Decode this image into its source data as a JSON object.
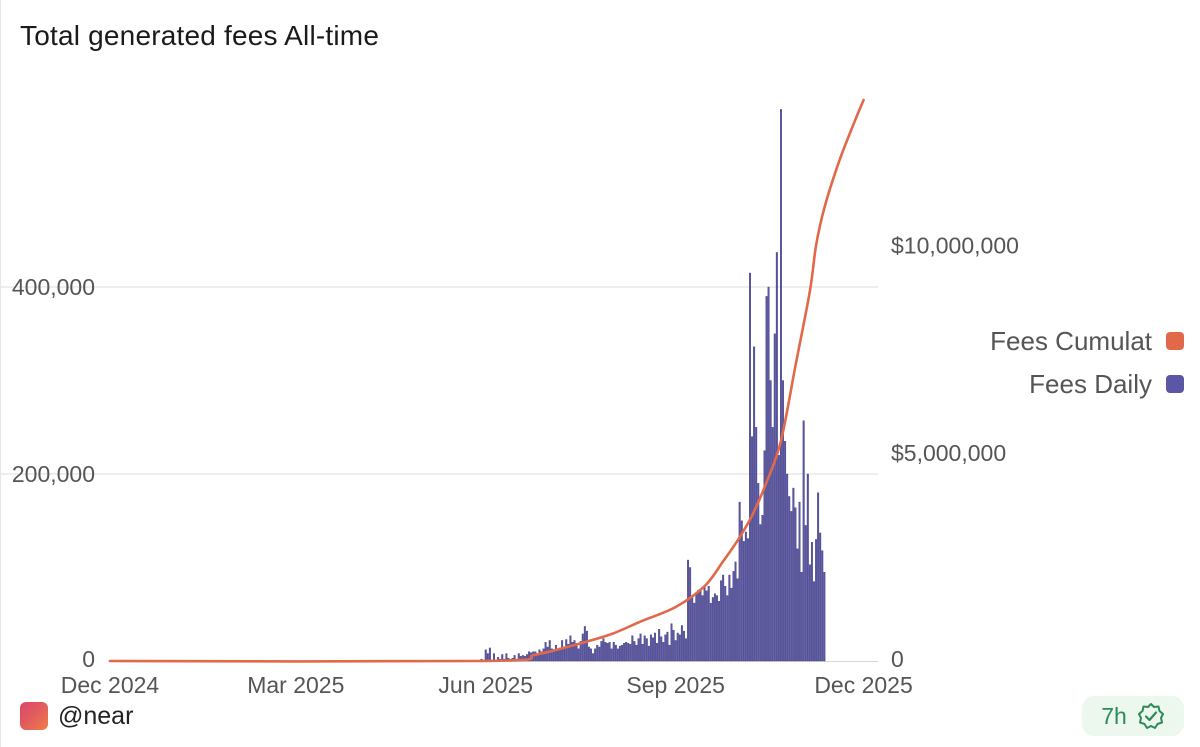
{
  "title": "Total generated fees All-time",
  "chart_data": {
    "type": "bar+line",
    "title": "Total generated fees All-time",
    "x_range": [
      "2024-12-01",
      "2025-12-08"
    ],
    "x_ticks": [
      {
        "date": "2024-12-01",
        "label": "Dec 2024"
      },
      {
        "date": "2025-03-01",
        "label": "Mar 2025"
      },
      {
        "date": "2025-06-01",
        "label": "Jun 2025"
      },
      {
        "date": "2025-09-01",
        "label": "Sep 2025"
      },
      {
        "date": "2025-12-01",
        "label": "Dec 2025"
      }
    ],
    "y_left": {
      "min": 0,
      "max": 600000,
      "ticks": [
        {
          "value": 0,
          "label": "0"
        },
        {
          "value": 200000,
          "label": "200,000"
        },
        {
          "value": 400000,
          "label": "400,000"
        }
      ]
    },
    "y_right": {
      "min": 0,
      "max": 13500000,
      "ticks": [
        {
          "value": 0,
          "label": "0"
        },
        {
          "value": 5000000,
          "label": "$5,000,000"
        },
        {
          "value": 10000000,
          "label": "$10,000,000"
        }
      ]
    },
    "legend": {
      "position": "right",
      "items": [
        {
          "name": "Fees Cumulat",
          "color": "#e1694a"
        },
        {
          "name": "Fees Daily",
          "color": "#5b57a5"
        }
      ]
    },
    "series": [
      {
        "name": "Fees Daily",
        "type": "bar",
        "axis": "left",
        "color": "#5b57a5",
        "start": "2025-05-30",
        "values": [
          2000,
          1000,
          12000,
          8000,
          14000,
          1000,
          8000,
          1000,
          4000,
          2000,
          7000,
          2000,
          8000,
          3000,
          2000,
          3000,
          6000,
          2000,
          8000,
          5000,
          6000,
          5000,
          7000,
          10000,
          9000,
          10000,
          10000,
          8000,
          12000,
          10000,
          13000,
          20000,
          15000,
          22000,
          13000,
          11000,
          17000,
          13000,
          14000,
          22000,
          14000,
          23000,
          18000,
          27000,
          20000,
          22000,
          19000,
          13000,
          21000,
          29000,
          37000,
          32000,
          15000,
          13000,
          8000,
          13000,
          17000,
          15000,
          21000,
          24000,
          20000,
          19000,
          20000,
          13000,
          20000,
          17000,
          13000,
          16000,
          17000,
          19000,
          20000,
          19000,
          18000,
          27000,
          21000,
          17000,
          24000,
          29000,
          18000,
          27000,
          24000,
          16000,
          28000,
          25000,
          30000,
          19000,
          34000,
          26000,
          20000,
          28000,
          31000,
          17000,
          40000,
          33000,
          22000,
          30000,
          28000,
          38000,
          32000,
          24000,
          108000,
          100000,
          70000,
          62000,
          72000,
          76000,
          77000,
          70000,
          80000,
          75000,
          80000,
          62000,
          68000,
          72000,
          70000,
          64000,
          86000,
          92000,
          80000,
          70000,
          92000,
          78000,
          96000,
          106000,
          88000,
          170000,
          150000,
          128000,
          138000,
          131000,
          415000,
          240000,
          336000,
          250000,
          190000,
          146000,
          156000,
          225000,
          390000,
          400000,
          300000,
          250000,
          350000,
          437000,
          220000,
          590000,
          300000,
          235000,
          200000,
          176000,
          160000,
          185000,
          164000,
          120000,
          170000,
          95000,
          257000,
          145000,
          200000,
          103000,
          127000,
          85000,
          130000,
          180000,
          137000,
          118000,
          95000
        ]
      },
      {
        "name": "Fees Cumulat",
        "type": "line",
        "axis": "right",
        "color": "#e1694a",
        "points": [
          {
            "date": "2024-12-01",
            "value": 0
          },
          {
            "date": "2025-06-01",
            "value": 0
          },
          {
            "date": "2025-06-25",
            "value": 150000
          },
          {
            "date": "2025-07-15",
            "value": 400000
          },
          {
            "date": "2025-08-01",
            "value": 650000
          },
          {
            "date": "2025-08-15",
            "value": 950000
          },
          {
            "date": "2025-09-01",
            "value": 1300000
          },
          {
            "date": "2025-09-15",
            "value": 1800000
          },
          {
            "date": "2025-09-24",
            "value": 2400000
          },
          {
            "date": "2025-10-01",
            "value": 2900000
          },
          {
            "date": "2025-10-08",
            "value": 3500000
          },
          {
            "date": "2025-10-15",
            "value": 4300000
          },
          {
            "date": "2025-10-22",
            "value": 5300000
          },
          {
            "date": "2025-10-29",
            "value": 7100000
          },
          {
            "date": "2025-11-05",
            "value": 8900000
          },
          {
            "date": "2025-11-08",
            "value": 10000000
          },
          {
            "date": "2025-11-12",
            "value": 10900000
          },
          {
            "date": "2025-11-19",
            "value": 12000000
          },
          {
            "date": "2025-11-26",
            "value": 12900000
          },
          {
            "date": "2025-12-01",
            "value": 13500000
          }
        ]
      }
    ]
  },
  "footer": {
    "handle": "@near",
    "badge_text": "7h"
  }
}
